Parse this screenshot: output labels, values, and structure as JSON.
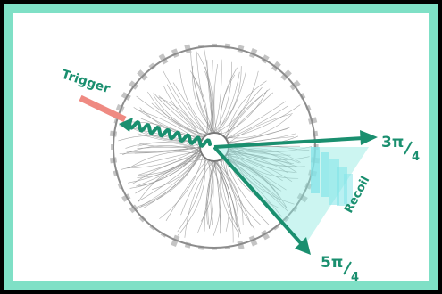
{
  "labels": {
    "trigger": "Trigger",
    "recoil": "Recoil",
    "angle_upper": {
      "num": "3π",
      "den": "4"
    },
    "angle_lower": {
      "num": "5π",
      "den": "4"
    }
  },
  "colors": {
    "frame": "#7fe0c6",
    "arrow": "#1a8f6f",
    "trigger_bar": "#ef8a82",
    "recoil_fill": "#8fe8e0",
    "tracks": "#9a9a9a"
  }
}
